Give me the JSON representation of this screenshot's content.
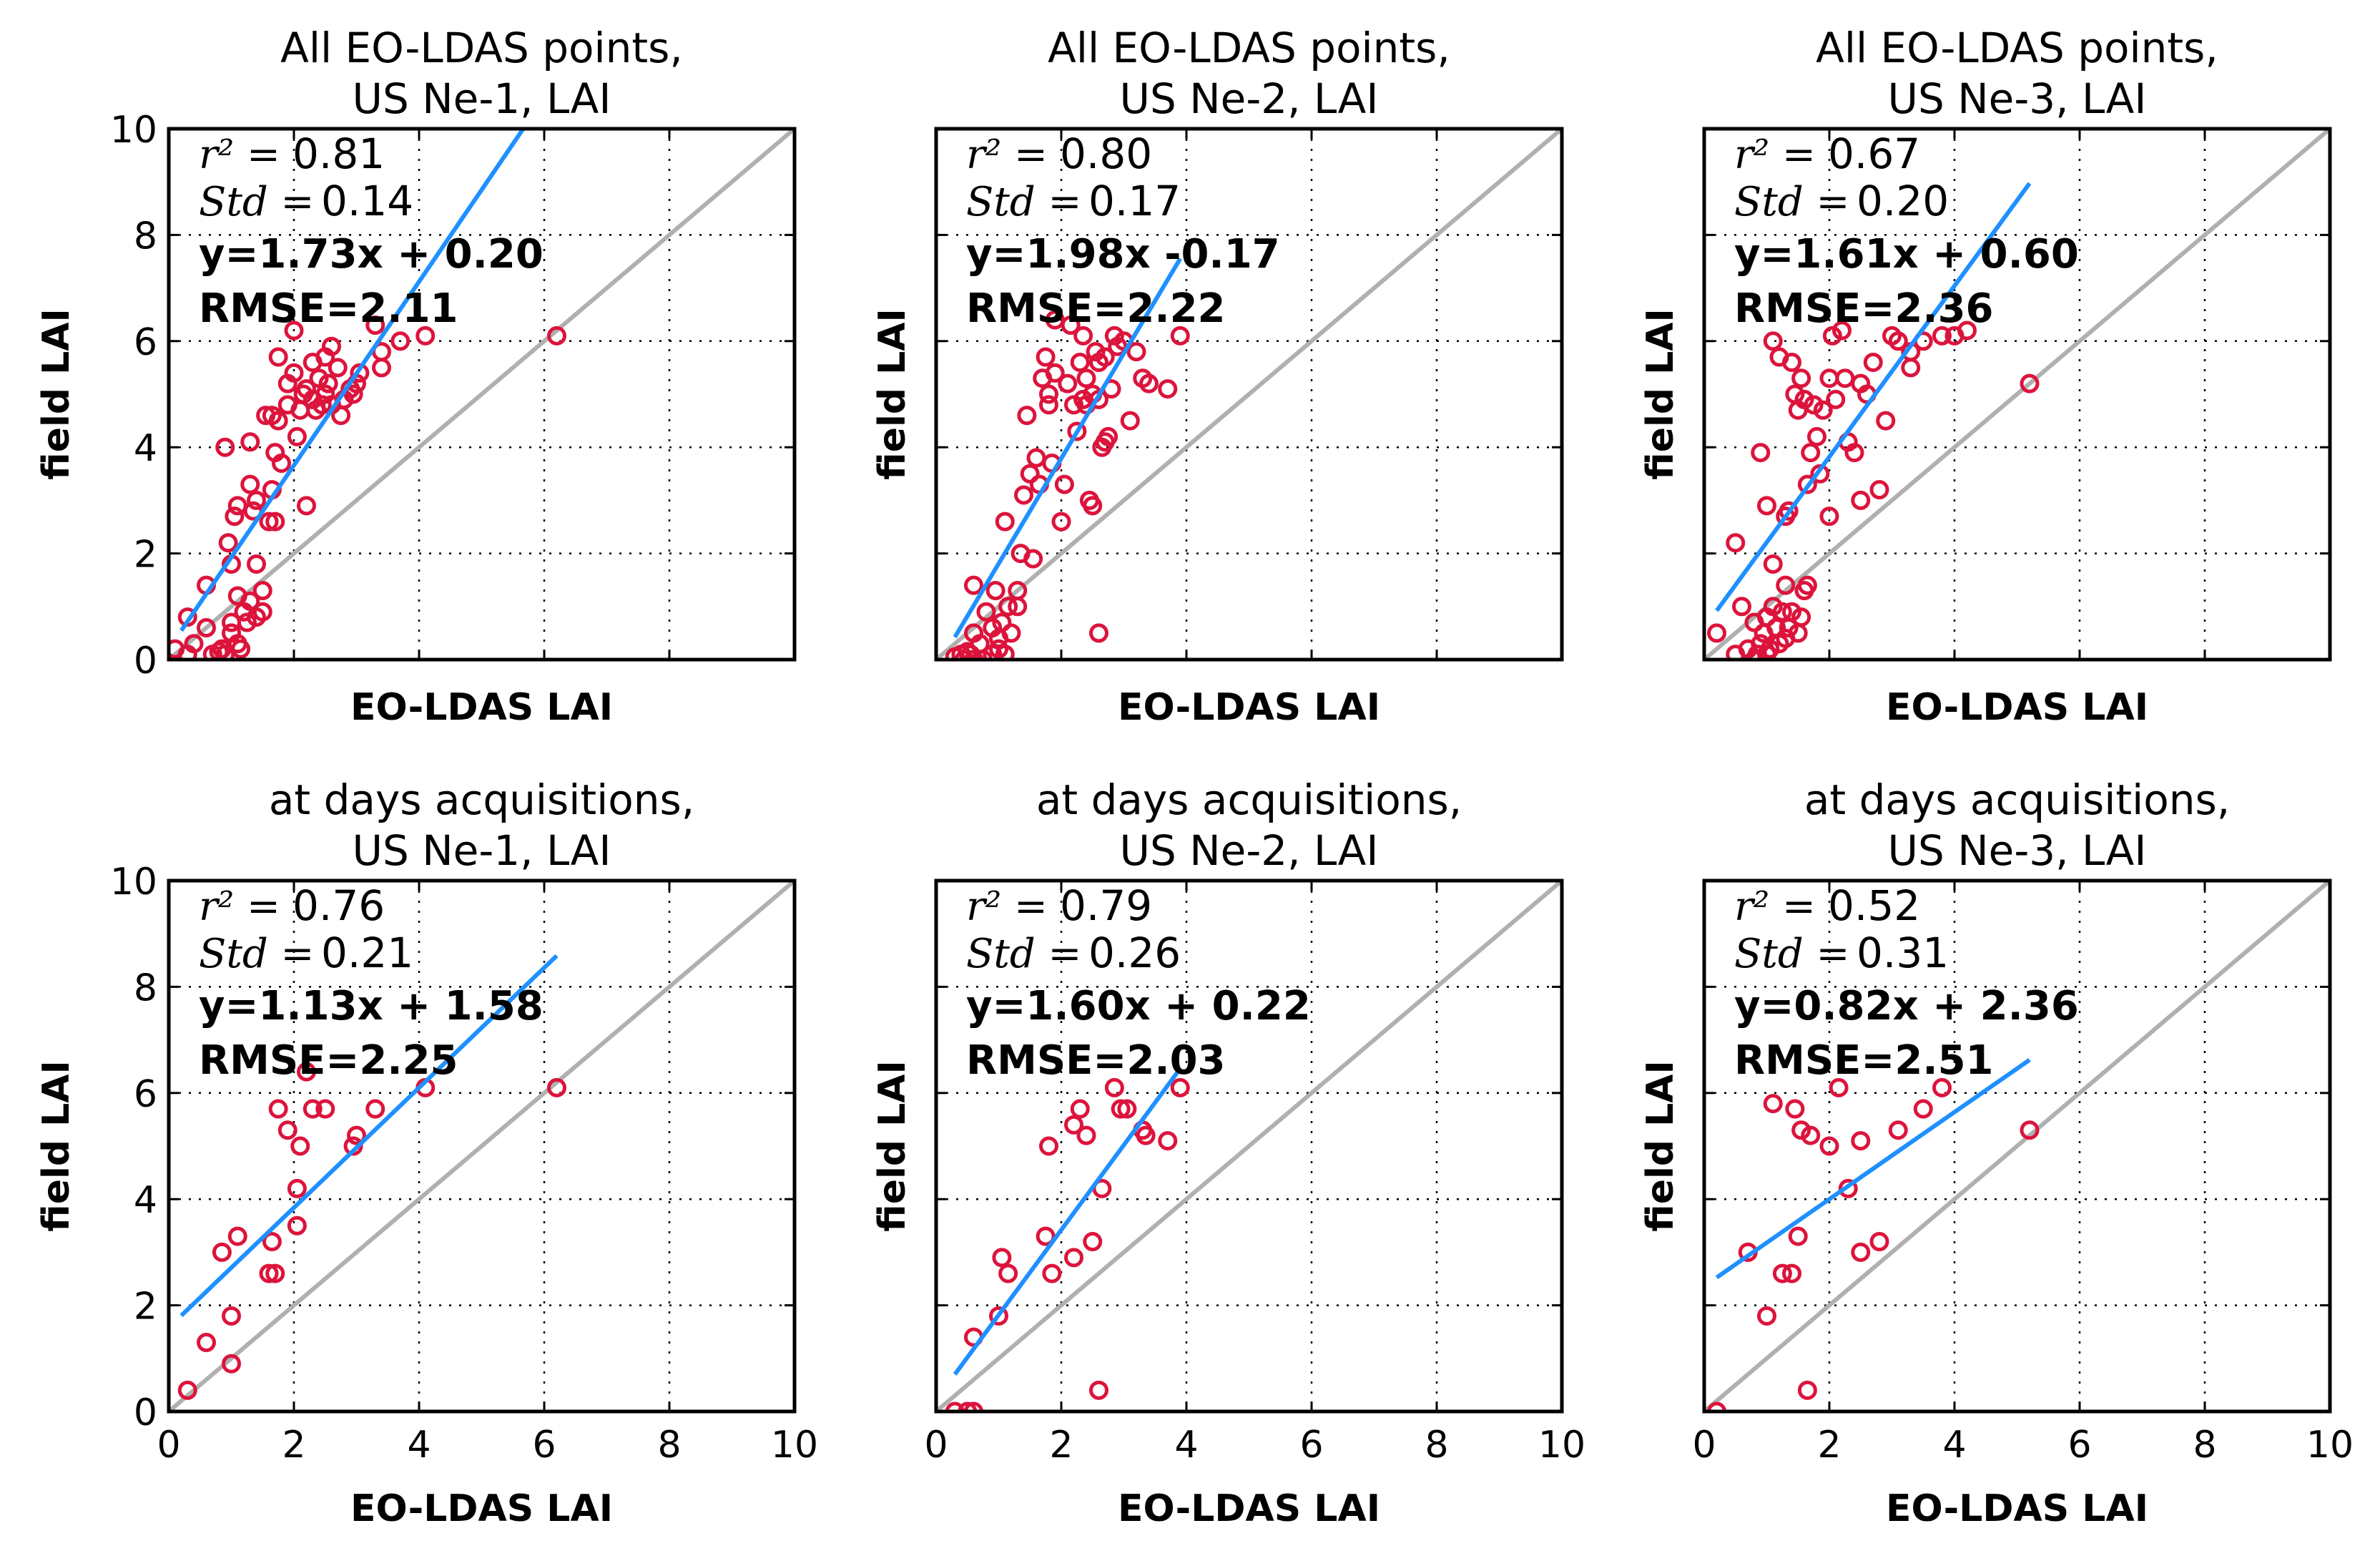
{
  "figure": {
    "colors": {
      "points": "#dc143c",
      "fit_line": "#1e90ff",
      "identity_line": "#b0b0b0"
    }
  },
  "chart_data": [
    {
      "type": "scatter",
      "title_line1": "All EO-LDAS points,",
      "title_line2": "US Ne-1, LAI",
      "xlabel": "EO-LDAS LAI",
      "ylabel": "field LAI",
      "xlim": [
        0,
        10
      ],
      "ylim": [
        0,
        10
      ],
      "xticks": [],
      "yticks": [
        "0",
        "2",
        "4",
        "6",
        "8",
        "10"
      ],
      "grid": true,
      "r2_label": "r² =",
      "r2_value": "0.81",
      "std_label": "Std =",
      "std_value": "0.14",
      "equation": "y=1.73x + 0.20",
      "rmse": "RMSE=2.11",
      "fit": {
        "slope": 1.73,
        "intercept": 0.2,
        "x_range": [
          0.2,
          5.7
        ]
      },
      "points": [
        [
          0.1,
          0.2
        ],
        [
          0.3,
          0.1
        ],
        [
          0.3,
          0.8
        ],
        [
          0.4,
          0.3
        ],
        [
          0.6,
          1.4
        ],
        [
          0.6,
          0.6
        ],
        [
          0.7,
          0.1
        ],
        [
          0.8,
          0.15
        ],
        [
          0.85,
          0.2
        ],
        [
          0.9,
          0.1
        ],
        [
          0.9,
          4.0
        ],
        [
          0.95,
          2.2
        ],
        [
          1.0,
          0.5
        ],
        [
          1.0,
          0.7
        ],
        [
          1.0,
          1.8
        ],
        [
          1.05,
          2.7
        ],
        [
          1.1,
          0.3
        ],
        [
          1.1,
          1.2
        ],
        [
          1.1,
          2.9
        ],
        [
          1.15,
          0.2
        ],
        [
          1.2,
          0.9
        ],
        [
          1.25,
          0.7
        ],
        [
          1.3,
          1.1
        ],
        [
          1.3,
          3.3
        ],
        [
          1.3,
          4.1
        ],
        [
          1.35,
          2.8
        ],
        [
          1.4,
          0.8
        ],
        [
          1.4,
          1.8
        ],
        [
          1.4,
          3.0
        ],
        [
          1.5,
          0.9
        ],
        [
          1.5,
          1.3
        ],
        [
          1.55,
          4.6
        ],
        [
          1.6,
          2.6
        ],
        [
          1.65,
          3.2
        ],
        [
          1.65,
          4.6
        ],
        [
          1.7,
          2.6
        ],
        [
          1.7,
          3.9
        ],
        [
          1.75,
          4.5
        ],
        [
          1.75,
          5.7
        ],
        [
          1.8,
          3.7
        ],
        [
          1.9,
          4.8
        ],
        [
          1.9,
          5.2
        ],
        [
          2.0,
          5.4
        ],
        [
          2.0,
          6.2
        ],
        [
          2.05,
          4.2
        ],
        [
          2.1,
          4.7
        ],
        [
          2.15,
          5.0
        ],
        [
          2.2,
          2.9
        ],
        [
          2.2,
          5.1
        ],
        [
          2.3,
          4.9
        ],
        [
          2.3,
          5.6
        ],
        [
          2.35,
          4.7
        ],
        [
          2.4,
          5.3
        ],
        [
          2.45,
          4.8
        ],
        [
          2.5,
          5.0
        ],
        [
          2.5,
          5.7
        ],
        [
          2.55,
          5.2
        ],
        [
          2.6,
          4.8
        ],
        [
          2.6,
          5.9
        ],
        [
          2.7,
          5.5
        ],
        [
          2.75,
          4.6
        ],
        [
          2.8,
          4.9
        ],
        [
          2.9,
          5.1
        ],
        [
          2.95,
          5.0
        ],
        [
          3.0,
          5.2
        ],
        [
          3.05,
          5.4
        ],
        [
          3.3,
          6.3
        ],
        [
          3.4,
          5.5
        ],
        [
          3.4,
          5.8
        ],
        [
          3.7,
          6.0
        ],
        [
          4.1,
          6.1
        ],
        [
          6.2,
          6.1
        ]
      ]
    },
    {
      "type": "scatter",
      "title_line1": "All EO-LDAS points,",
      "title_line2": "US Ne-2, LAI",
      "xlabel": "EO-LDAS LAI",
      "ylabel": "field LAI",
      "xlim": [
        0,
        10
      ],
      "ylim": [
        0,
        10
      ],
      "xticks": [],
      "yticks": [],
      "grid": true,
      "r2_label": "r² =",
      "r2_value": "0.80",
      "std_label": "Std =",
      "std_value": "0.17",
      "equation": "y=1.98x -0.17",
      "rmse": "RMSE=2.22",
      "fit": {
        "slope": 1.98,
        "intercept": -0.17,
        "x_range": [
          0.3,
          3.9
        ]
      },
      "points": [
        [
          0.3,
          0.05
        ],
        [
          0.4,
          0.1
        ],
        [
          0.45,
          0.0
        ],
        [
          0.5,
          0.15
        ],
        [
          0.55,
          0.1
        ],
        [
          0.6,
          0.0
        ],
        [
          0.6,
          0.5
        ],
        [
          0.6,
          1.4
        ],
        [
          0.7,
          0.3
        ],
        [
          0.75,
          0.0
        ],
        [
          0.8,
          0.9
        ],
        [
          0.9,
          0.1
        ],
        [
          0.9,
          0.6
        ],
        [
          0.95,
          1.3
        ],
        [
          1.0,
          0.2
        ],
        [
          1.0,
          0.4
        ],
        [
          1.05,
          0.7
        ],
        [
          1.1,
          0.1
        ],
        [
          1.1,
          2.6
        ],
        [
          1.15,
          1.0
        ],
        [
          1.2,
          0.5
        ],
        [
          1.3,
          1.3
        ],
        [
          1.3,
          1.0
        ],
        [
          1.35,
          2.0
        ],
        [
          1.4,
          3.1
        ],
        [
          1.45,
          4.6
        ],
        [
          1.5,
          3.5
        ],
        [
          1.55,
          1.9
        ],
        [
          1.6,
          3.8
        ],
        [
          1.65,
          3.3
        ],
        [
          1.7,
          5.3
        ],
        [
          1.75,
          5.7
        ],
        [
          1.8,
          4.8
        ],
        [
          1.8,
          5.0
        ],
        [
          1.85,
          3.7
        ],
        [
          1.9,
          5.4
        ],
        [
          1.9,
          6.4
        ],
        [
          2.0,
          2.6
        ],
        [
          2.05,
          3.3
        ],
        [
          2.1,
          5.2
        ],
        [
          2.15,
          6.3
        ],
        [
          2.2,
          4.8
        ],
        [
          2.25,
          4.3
        ],
        [
          2.3,
          5.6
        ],
        [
          2.35,
          4.9
        ],
        [
          2.35,
          6.1
        ],
        [
          2.4,
          4.8
        ],
        [
          2.4,
          5.3
        ],
        [
          2.45,
          3.0
        ],
        [
          2.5,
          2.9
        ],
        [
          2.5,
          5.0
        ],
        [
          2.55,
          5.8
        ],
        [
          2.6,
          4.9
        ],
        [
          2.6,
          5.6
        ],
        [
          2.65,
          4.0
        ],
        [
          2.7,
          4.1
        ],
        [
          2.7,
          5.7
        ],
        [
          2.75,
          4.2
        ],
        [
          2.8,
          5.1
        ],
        [
          2.85,
          6.1
        ],
        [
          2.9,
          5.9
        ],
        [
          3.0,
          6.0
        ],
        [
          3.1,
          4.5
        ],
        [
          3.2,
          5.8
        ],
        [
          3.3,
          5.3
        ],
        [
          3.4,
          5.2
        ],
        [
          3.7,
          5.1
        ],
        [
          3.9,
          6.1
        ],
        [
          2.6,
          0.5
        ]
      ]
    },
    {
      "type": "scatter",
      "title_line1": "All EO-LDAS points,",
      "title_line2": "US Ne-3, LAI",
      "xlabel": "EO-LDAS LAI",
      "ylabel": "field LAI",
      "xlim": [
        0,
        10
      ],
      "ylim": [
        0,
        10
      ],
      "xticks": [],
      "yticks": [],
      "grid": true,
      "r2_label": "r² =",
      "r2_value": "0.67",
      "std_label": "Std =",
      "std_value": "0.20",
      "equation": "y=1.61x + 0.60",
      "rmse": "RMSE=2.36",
      "fit": {
        "slope": 1.61,
        "intercept": 0.6,
        "x_range": [
          0.2,
          5.2
        ]
      },
      "points": [
        [
          0.2,
          0.5
        ],
        [
          0.5,
          0.1
        ],
        [
          0.6,
          1.0
        ],
        [
          0.7,
          0.2
        ],
        [
          0.8,
          0.0
        ],
        [
          0.8,
          0.7
        ],
        [
          0.85,
          0.1
        ],
        [
          0.9,
          0.3
        ],
        [
          0.95,
          0.5
        ],
        [
          1.0,
          0.1
        ],
        [
          1.0,
          0.8
        ],
        [
          1.05,
          0.2
        ],
        [
          1.1,
          1.0
        ],
        [
          1.1,
          1.8
        ],
        [
          1.15,
          0.6
        ],
        [
          1.2,
          0.3
        ],
        [
          1.25,
          0.9
        ],
        [
          1.3,
          0.4
        ],
        [
          1.3,
          1.4
        ],
        [
          1.35,
          0.6
        ],
        [
          1.4,
          0.9
        ],
        [
          1.5,
          0.5
        ],
        [
          1.55,
          0.8
        ],
        [
          1.6,
          1.3
        ],
        [
          1.65,
          1.4
        ],
        [
          0.5,
          2.2
        ],
        [
          0.9,
          3.9
        ],
        [
          1.0,
          2.9
        ],
        [
          1.1,
          6.0
        ],
        [
          1.2,
          5.7
        ],
        [
          1.3,
          2.7
        ],
        [
          1.35,
          2.8
        ],
        [
          1.4,
          5.6
        ],
        [
          1.45,
          5.0
        ],
        [
          1.5,
          4.7
        ],
        [
          1.55,
          5.3
        ],
        [
          1.6,
          4.9
        ],
        [
          1.65,
          3.3
        ],
        [
          1.7,
          3.9
        ],
        [
          1.75,
          4.8
        ],
        [
          1.8,
          4.2
        ],
        [
          1.85,
          3.5
        ],
        [
          1.9,
          4.7
        ],
        [
          2.0,
          2.7
        ],
        [
          2.0,
          5.3
        ],
        [
          2.05,
          6.1
        ],
        [
          2.1,
          4.9
        ],
        [
          2.2,
          6.2
        ],
        [
          2.25,
          5.3
        ],
        [
          2.3,
          4.1
        ],
        [
          2.4,
          3.9
        ],
        [
          2.5,
          3.0
        ],
        [
          2.5,
          5.2
        ],
        [
          2.6,
          5.0
        ],
        [
          2.7,
          5.6
        ],
        [
          2.8,
          3.2
        ],
        [
          2.9,
          4.5
        ],
        [
          3.0,
          6.1
        ],
        [
          3.1,
          6.0
        ],
        [
          3.3,
          5.8
        ],
        [
          3.5,
          6.0
        ],
        [
          3.8,
          6.1
        ],
        [
          4.0,
          6.1
        ],
        [
          4.2,
          6.2
        ],
        [
          3.3,
          5.5
        ],
        [
          5.2,
          5.2
        ]
      ]
    },
    {
      "type": "scatter",
      "title_line1": "at days acquisitions,",
      "title_line2": "US Ne-1, LAI",
      "xlabel": "EO-LDAS LAI",
      "ylabel": "field LAI",
      "xlim": [
        0,
        10
      ],
      "ylim": [
        0,
        10
      ],
      "xticks": [
        "0",
        "2",
        "4",
        "6",
        "8",
        "10"
      ],
      "yticks": [
        "0",
        "2",
        "4",
        "6",
        "8",
        "10"
      ],
      "grid": true,
      "r2_label": "r² =",
      "r2_value": "0.76",
      "std_label": "Std =",
      "std_value": "0.21",
      "equation": "y=1.13x + 1.58",
      "rmse": "RMSE=2.25",
      "fit": {
        "slope": 1.13,
        "intercept": 1.58,
        "x_range": [
          0.2,
          6.2
        ]
      },
      "points": [
        [
          0.3,
          0.4
        ],
        [
          0.6,
          1.3
        ],
        [
          0.85,
          3.0
        ],
        [
          1.0,
          0.9
        ],
        [
          1.0,
          1.8
        ],
        [
          1.1,
          3.3
        ],
        [
          1.6,
          2.6
        ],
        [
          1.65,
          3.2
        ],
        [
          1.7,
          2.6
        ],
        [
          1.75,
          5.7
        ],
        [
          1.9,
          5.3
        ],
        [
          2.05,
          4.2
        ],
        [
          2.05,
          3.5
        ],
        [
          2.1,
          5.0
        ],
        [
          2.2,
          6.4
        ],
        [
          2.3,
          5.7
        ],
        [
          2.5,
          5.7
        ],
        [
          2.95,
          5.0
        ],
        [
          3.0,
          5.2
        ],
        [
          3.3,
          5.7
        ],
        [
          4.1,
          6.1
        ],
        [
          6.2,
          6.1
        ]
      ]
    },
    {
      "type": "scatter",
      "title_line1": "at days acquisitions,",
      "title_line2": "US Ne-2, LAI",
      "xlabel": "EO-LDAS LAI",
      "ylabel": "field LAI",
      "xlim": [
        0,
        10
      ],
      "ylim": [
        0,
        10
      ],
      "xticks": [
        "0",
        "2",
        "4",
        "6",
        "8",
        "10"
      ],
      "yticks": [],
      "grid": true,
      "r2_label": "r² =",
      "r2_value": "0.79",
      "std_label": "Std =",
      "std_value": "0.26",
      "equation": "y=1.60x + 0.22",
      "rmse": "RMSE=2.03",
      "fit": {
        "slope": 1.6,
        "intercept": 0.22,
        "x_range": [
          0.3,
          3.9
        ]
      },
      "points": [
        [
          0.3,
          0.0
        ],
        [
          0.5,
          0.0
        ],
        [
          0.6,
          0.0
        ],
        [
          0.6,
          1.4
        ],
        [
          1.0,
          1.8
        ],
        [
          1.05,
          2.9
        ],
        [
          1.15,
          2.6
        ],
        [
          1.75,
          3.3
        ],
        [
          1.8,
          5.0
        ],
        [
          1.85,
          2.6
        ],
        [
          2.2,
          2.9
        ],
        [
          2.2,
          5.4
        ],
        [
          2.3,
          5.7
        ],
        [
          2.4,
          5.2
        ],
        [
          2.5,
          3.2
        ],
        [
          2.6,
          0.4
        ],
        [
          2.65,
          4.2
        ],
        [
          2.85,
          6.1
        ],
        [
          2.95,
          5.7
        ],
        [
          3.05,
          5.7
        ],
        [
          3.3,
          5.3
        ],
        [
          3.35,
          5.2
        ],
        [
          3.7,
          5.1
        ],
        [
          3.9,
          6.1
        ]
      ]
    },
    {
      "type": "scatter",
      "title_line1": "at days acquisitions,",
      "title_line2": "US Ne-3, LAI",
      "xlabel": "EO-LDAS LAI",
      "ylabel": "field LAI",
      "xlim": [
        0,
        10
      ],
      "ylim": [
        0,
        10
      ],
      "xticks": [
        "0",
        "2",
        "4",
        "6",
        "8",
        "10"
      ],
      "yticks": [],
      "grid": true,
      "r2_label": "r² =",
      "r2_value": "0.52",
      "std_label": "Std =",
      "std_value": "0.31",
      "equation": "y=0.82x + 2.36",
      "rmse": "RMSE=2.51",
      "fit": {
        "slope": 0.82,
        "intercept": 2.36,
        "x_range": [
          0.2,
          5.2
        ]
      },
      "points": [
        [
          0.2,
          0.0
        ],
        [
          0.7,
          3.0
        ],
        [
          1.0,
          1.8
        ],
        [
          1.1,
          5.8
        ],
        [
          1.25,
          2.6
        ],
        [
          1.4,
          2.6
        ],
        [
          1.45,
          5.7
        ],
        [
          1.5,
          3.3
        ],
        [
          1.55,
          5.3
        ],
        [
          1.65,
          0.4
        ],
        [
          1.7,
          5.2
        ],
        [
          2.0,
          5.0
        ],
        [
          2.15,
          6.1
        ],
        [
          2.3,
          4.2
        ],
        [
          2.5,
          3.0
        ],
        [
          2.5,
          5.1
        ],
        [
          2.8,
          3.2
        ],
        [
          3.1,
          5.3
        ],
        [
          3.5,
          5.7
        ],
        [
          3.8,
          6.1
        ],
        [
          5.2,
          5.3
        ]
      ]
    }
  ]
}
